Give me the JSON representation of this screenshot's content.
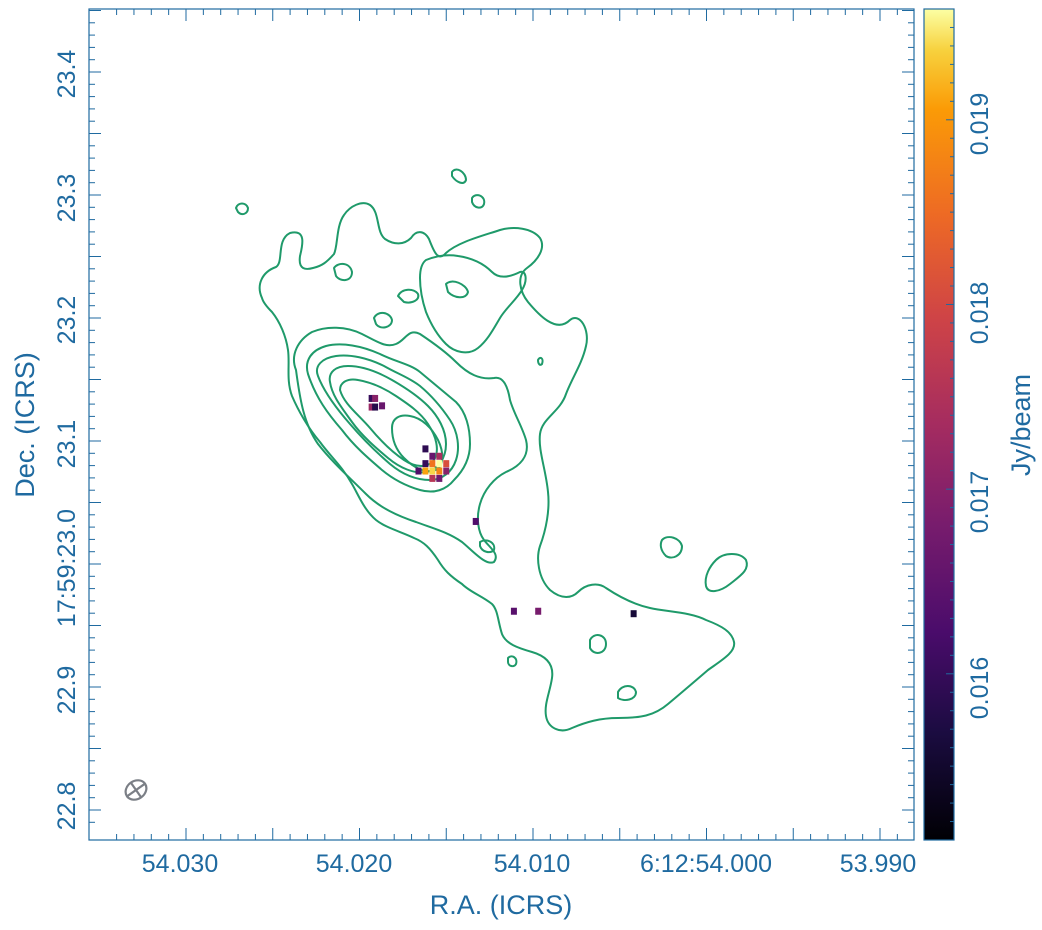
{
  "chart_data": {
    "type": "heatmap",
    "xlabel": "R.A. (ICRS)",
    "ylabel": "Dec. (ICRS)",
    "colorbar_label": "Jy/beam",
    "colorbar_range": [
      0.0151,
      0.0196
    ],
    "colorbar_ticks": [
      {
        "value": 0.016,
        "label": "0.016"
      },
      {
        "value": 0.017,
        "label": "0.017"
      },
      {
        "value": 0.018,
        "label": "0.018"
      },
      {
        "value": 0.019,
        "label": "0.019"
      }
    ],
    "x_ticks": [
      "54.030",
      "54.020",
      "54.010",
      "6:12:54.000",
      "53.990"
    ],
    "y_ticks": [
      "22.8",
      "22.9",
      "17:59:23.0",
      "23.0",
      "23.1",
      "23.2",
      "23.3",
      "23.4"
    ],
    "colormap": "inferno",
    "contour_color": "#1f9a6a",
    "axis_color": "#1f6aa0",
    "beam_color": "#7b7f86",
    "pixels": [
      {
        "ra_s": 54.0193,
        "dec_s": 23.135,
        "value": 0.016
      },
      {
        "ra_s": 54.0191,
        "dec_s": 23.135,
        "value": 0.017
      },
      {
        "ra_s": 54.0193,
        "dec_s": 23.128,
        "value": 0.0172
      },
      {
        "ra_s": 54.0191,
        "dec_s": 23.128,
        "value": 0.0158
      },
      {
        "ra_s": 54.0187,
        "dec_s": 23.129,
        "value": 0.0166
      },
      {
        "ra_s": 54.0162,
        "dec_s": 23.094,
        "value": 0.0159
      },
      {
        "ra_s": 54.0158,
        "dec_s": 23.088,
        "value": 0.0166
      },
      {
        "ra_s": 54.0154,
        "dec_s": 23.088,
        "value": 0.0174
      },
      {
        "ra_s": 54.0162,
        "dec_s": 23.082,
        "value": 0.016
      },
      {
        "ra_s": 54.0158,
        "dec_s": 23.082,
        "value": 0.0186
      },
      {
        "ra_s": 54.0154,
        "dec_s": 23.082,
        "value": 0.0196
      },
      {
        "ra_s": 54.015,
        "dec_s": 23.082,
        "value": 0.0181
      },
      {
        "ra_s": 54.0166,
        "dec_s": 23.076,
        "value": 0.0163
      },
      {
        "ra_s": 54.0162,
        "dec_s": 23.076,
        "value": 0.0191
      },
      {
        "ra_s": 54.0158,
        "dec_s": 23.076,
        "value": 0.0194
      },
      {
        "ra_s": 54.0154,
        "dec_s": 23.076,
        "value": 0.0188
      },
      {
        "ra_s": 54.015,
        "dec_s": 23.076,
        "value": 0.017
      },
      {
        "ra_s": 54.0158,
        "dec_s": 23.07,
        "value": 0.0176
      },
      {
        "ra_s": 54.0154,
        "dec_s": 23.07,
        "value": 0.0167
      },
      {
        "ra_s": 54.0133,
        "dec_s": 23.035,
        "value": 0.0163
      },
      {
        "ra_s": 54.0111,
        "dec_s": 22.962,
        "value": 0.0164
      },
      {
        "ra_s": 54.0097,
        "dec_s": 22.962,
        "value": 0.0168
      },
      {
        "ra_s": 54.0042,
        "dec_s": 22.96,
        "value": 0.0156
      }
    ]
  }
}
